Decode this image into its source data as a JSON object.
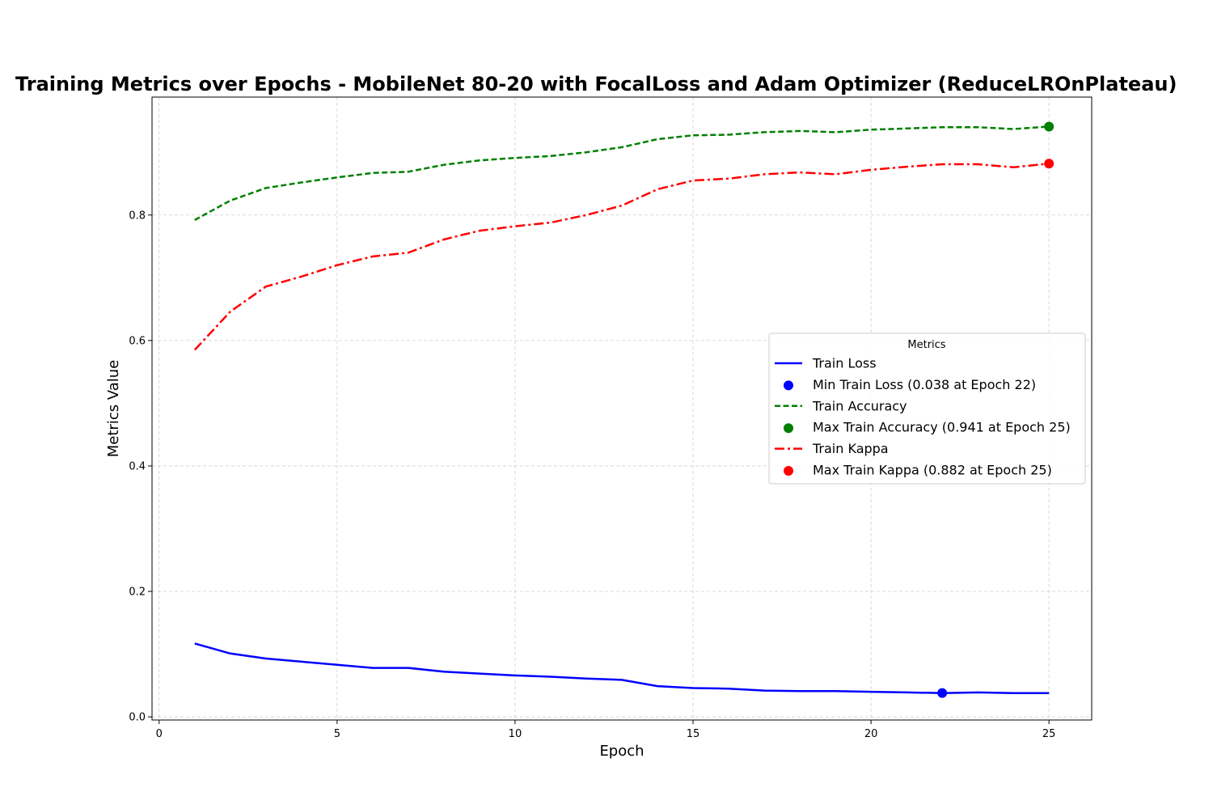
{
  "chart_data": {
    "type": "line",
    "title": "Training Metrics over Epochs - MobileNet 80-20 with FocalLoss and Adam Optimizer (ReduceLROnPlateau)",
    "xlabel": "Epoch",
    "ylabel": "Metrics Value",
    "xlim": [
      -0.2,
      26.2
    ],
    "ylim": [
      -0.005,
      0.988
    ],
    "x_ticks": [
      0,
      5,
      10,
      15,
      20,
      25
    ],
    "y_ticks": [
      0.0,
      0.2,
      0.4,
      0.6,
      0.8
    ],
    "x_tick_labels": [
      "0",
      "5",
      "10",
      "15",
      "20",
      "25"
    ],
    "y_tick_labels": [
      "0.0",
      "0.2",
      "0.4",
      "0.6",
      "0.8"
    ],
    "grid": true,
    "legend": {
      "title": "Metrics",
      "placement": "center-right",
      "entries": [
        "Train Loss",
        "Min Train Loss (0.038 at Epoch 22)",
        "Train Accuracy",
        "Max Train Accuracy (0.941 at Epoch 25)",
        "Train Kappa",
        "Max Train Kappa (0.882 at Epoch 25)"
      ]
    },
    "x": [
      1,
      2,
      3,
      4,
      5,
      6,
      7,
      8,
      9,
      10,
      11,
      12,
      13,
      14,
      15,
      16,
      17,
      18,
      19,
      20,
      21,
      22,
      23,
      24,
      25
    ],
    "series": [
      {
        "name": "Train Loss",
        "color": "#0000ff",
        "style": "solid",
        "values": [
          0.117,
          0.101,
          0.093,
          0.088,
          0.083,
          0.078,
          0.078,
          0.072,
          0.069,
          0.066,
          0.064,
          0.061,
          0.059,
          0.049,
          0.046,
          0.045,
          0.042,
          0.041,
          0.041,
          0.04,
          0.039,
          0.038,
          0.039,
          0.038,
          0.038
        ]
      },
      {
        "name": "Train Accuracy",
        "color": "#008000",
        "style": "dashed",
        "values": [
          0.792,
          0.823,
          0.843,
          0.852,
          0.86,
          0.867,
          0.869,
          0.88,
          0.887,
          0.891,
          0.894,
          0.9,
          0.908,
          0.921,
          0.927,
          0.928,
          0.932,
          0.934,
          0.932,
          0.936,
          0.938,
          0.94,
          0.94,
          0.937,
          0.941
        ]
      },
      {
        "name": "Train Kappa",
        "color": "#ff0000",
        "style": "dashdot",
        "values": [
          0.585,
          0.646,
          0.686,
          0.702,
          0.72,
          0.734,
          0.74,
          0.761,
          0.775,
          0.782,
          0.788,
          0.8,
          0.815,
          0.841,
          0.855,
          0.858,
          0.865,
          0.868,
          0.865,
          0.872,
          0.877,
          0.881,
          0.881,
          0.876,
          0.882
        ]
      }
    ],
    "markers": [
      {
        "name": "Min Train Loss (0.038 at Epoch 22)",
        "x": 22,
        "y": 0.038,
        "color": "#0000ff"
      },
      {
        "name": "Max Train Accuracy (0.941 at Epoch 25)",
        "x": 25,
        "y": 0.941,
        "color": "#008000"
      },
      {
        "name": "Max Train Kappa (0.882 at Epoch 25)",
        "x": 25,
        "y": 0.882,
        "color": "#ff0000"
      }
    ]
  }
}
